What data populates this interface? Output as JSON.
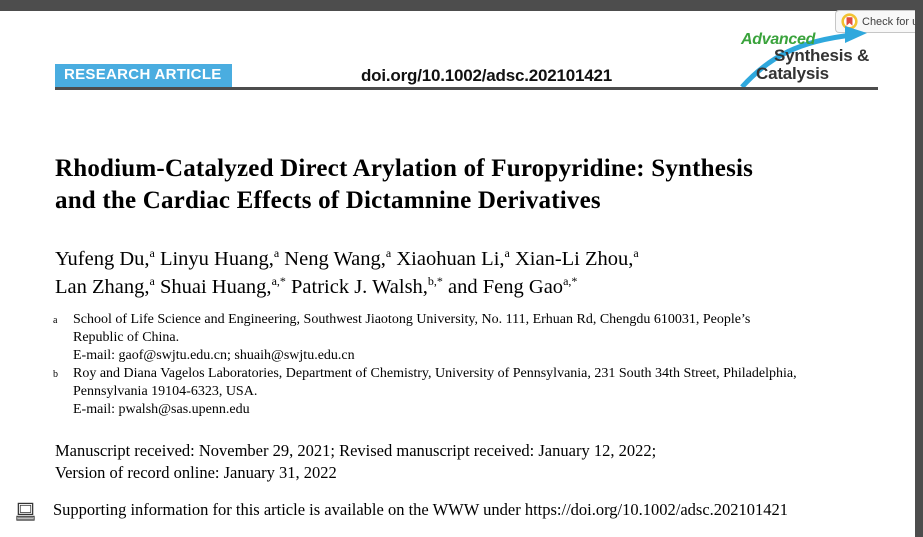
{
  "colors": {
    "frame_gray": "#4d4d4d",
    "badge_blue": "#4aade0",
    "logo_green": "#3aa33c",
    "arrow_blue": "#2fa8dd",
    "crossmark_yellow": "#f2c230",
    "crossmark_red": "#e04b3f"
  },
  "header": {
    "badge_label": "RESEARCH ARTICLE",
    "doi": "doi.org/10.1002/adsc.202101421",
    "check_updates_label": "Check for u",
    "check_updates_icon": "crossmark-bookmark-icon",
    "journal_logo": {
      "line1": "Advanced",
      "line2": "Synthesis &",
      "line3": "Catalysis"
    }
  },
  "article": {
    "title_lines": [
      "Rhodium-Catalyzed Direct Arylation of Furopyridine: Synthesis",
      "and the Cardiac Effects of Dictamnine Derivatives"
    ],
    "author_lines": [
      [
        {
          "t": "Yufeng Du,",
          "s": "a"
        },
        {
          "t": " Linyu Huang,",
          "s": "a"
        },
        {
          "t": " Neng Wang,",
          "s": "a"
        },
        {
          "t": " Xiaohuan Li,",
          "s": "a"
        },
        {
          "t": " Xian-Li Zhou,",
          "s": "a"
        }
      ],
      [
        {
          "t": "Lan Zhang,",
          "s": "a"
        },
        {
          "t": " Shuai Huang,",
          "s": "a,*"
        },
        {
          "t": " Patrick J. Walsh,",
          "s": "b,*"
        },
        {
          "t": " and Feng Gao",
          "s": "a,*"
        }
      ]
    ],
    "affiliations": [
      {
        "marker": "a",
        "lines": [
          "School of Life Science and Engineering, Southwest Jiaotong University, No. 111, Erhuan Rd, Chengdu 610031, People’s",
          "Republic of China.",
          "E-mail: gaof@swjtu.edu.cn; shuaih@swjtu.edu.cn"
        ]
      },
      {
        "marker": "b",
        "lines": [
          "Roy and Diana Vagelos Laboratories, Department of Chemistry, University of Pennsylvania, 231 South 34th Street, Philadelphia,",
          "Pennsylvania 19104-6323, USA.",
          "E-mail: pwalsh@sas.upenn.edu"
        ]
      }
    ],
    "history_lines": [
      "Manuscript received: November 29, 2021; Revised manuscript received: January 12, 2022;",
      "Version of record online: January 31, 2022"
    ],
    "supporting_info": "Supporting information for this article is available on the WWW under https://doi.org/10.1002/adsc.202101421",
    "supporting_icon": "computer-icon"
  }
}
